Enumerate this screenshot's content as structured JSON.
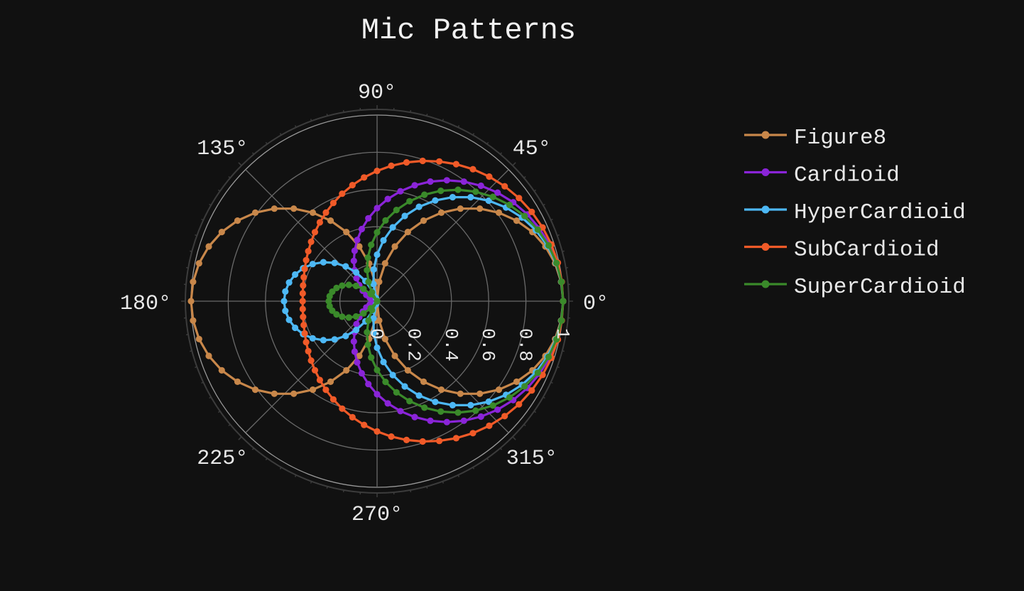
{
  "chart_data": {
    "type": "line",
    "subtype": "polar",
    "title": "Mic Patterns",
    "angular_ticks": [
      "0°",
      "45°",
      "90°",
      "135°",
      "180°",
      "225°",
      "270°",
      "315°"
    ],
    "angular_tick_values": [
      0,
      45,
      90,
      135,
      180,
      225,
      270,
      315
    ],
    "radial_ticks": [
      "0",
      "0.2",
      "0.4",
      "0.6",
      "0.8",
      "1"
    ],
    "radial_tick_values": [
      0,
      0.2,
      0.4,
      0.6,
      0.8,
      1
    ],
    "r_range": [
      0,
      1
    ],
    "grid": true,
    "legend_position": "right",
    "background": "#111111",
    "grid_color": "#5a5a5a",
    "theta_step_deg": 6,
    "series": [
      {
        "name": "Figure8",
        "color": "#c8874a",
        "formula": "|cos θ|"
      },
      {
        "name": "Cardioid",
        "color": "#8a24d8",
        "formula": "0.5 + 0.5 cos θ"
      },
      {
        "name": "HyperCardioid",
        "color": "#4db8f5",
        "formula": "|0.25 + 0.75 cos θ|"
      },
      {
        "name": "SubCardioid",
        "color": "#f05a28",
        "formula": "0.7 + 0.3 cos θ"
      },
      {
        "name": "SuperCardioid",
        "color": "#3a8a2a",
        "formula": "|0.37 + 0.63 cos θ|"
      }
    ]
  }
}
